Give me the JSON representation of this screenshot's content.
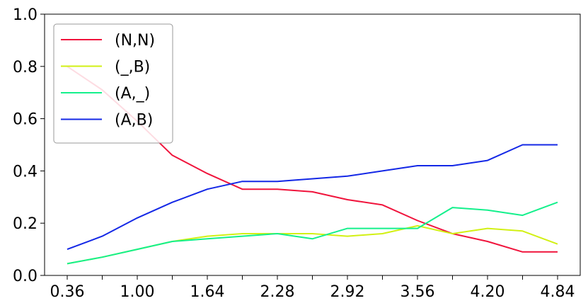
{
  "chart_data": {
    "type": "line",
    "title": "",
    "xlabel": "",
    "ylabel": "",
    "xlim": [
      0.36,
      4.84
    ],
    "ylim": [
      0.0,
      1.0
    ],
    "x": [
      0.36,
      0.68,
      1.0,
      1.32,
      1.64,
      1.96,
      2.28,
      2.6,
      2.92,
      3.24,
      3.56,
      3.88,
      4.2,
      4.52,
      4.84
    ],
    "xticks": [
      0.36,
      1.0,
      1.64,
      2.28,
      2.92,
      3.56,
      4.2,
      4.84
    ],
    "xtick_labels": [
      "0.36",
      "1.00",
      "1.64",
      "2.28",
      "2.92",
      "3.56",
      "4.20",
      "4.84"
    ],
    "yticks": [
      0.0,
      0.2,
      0.4,
      0.6,
      0.8,
      1.0
    ],
    "ytick_labels": [
      "0.0",
      "0.2",
      "0.4",
      "0.6",
      "0.8",
      "1.0"
    ],
    "legend_position": "top-left",
    "grid": false,
    "series": [
      {
        "name": "(N,N)",
        "color": "#f0143c",
        "values": [
          0.8,
          0.71,
          0.59,
          0.46,
          0.39,
          0.33,
          0.33,
          0.32,
          0.29,
          0.27,
          0.21,
          0.16,
          0.13,
          0.09,
          0.09
        ]
      },
      {
        "name": "(_,B)",
        "color": "#d2f014",
        "values": [
          0.045,
          0.07,
          0.1,
          0.13,
          0.15,
          0.16,
          0.16,
          0.16,
          0.15,
          0.16,
          0.19,
          0.16,
          0.18,
          0.17,
          0.12
        ]
      },
      {
        "name": "(A,_)",
        "color": "#14f08c",
        "values": [
          0.045,
          0.07,
          0.1,
          0.13,
          0.14,
          0.15,
          0.16,
          0.14,
          0.18,
          0.18,
          0.18,
          0.26,
          0.25,
          0.23,
          0.28
        ]
      },
      {
        "name": "(A,B)",
        "color": "#1428e6",
        "values": [
          0.1,
          0.15,
          0.22,
          0.28,
          0.33,
          0.36,
          0.36,
          0.37,
          0.38,
          0.4,
          0.42,
          0.42,
          0.44,
          0.5,
          0.5
        ]
      }
    ]
  }
}
